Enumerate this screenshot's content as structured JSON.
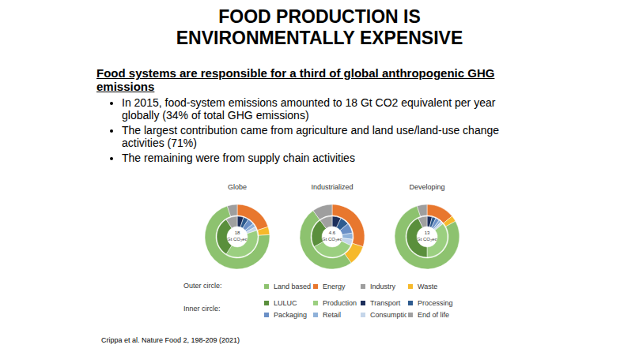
{
  "slide": {
    "title": [
      "FOOD PRODUCTION IS",
      "ENVIRONMENTALLY EXPENSIVE"
    ],
    "heading": "Food systems are responsible for a third of global anthropogenic GHG emissions",
    "bullets": [
      "In 2015, food-system emissions amounted to 18 Gt CO2 equivalent per year globally (34% of total GHG emissions)",
      "The largest contribution came from agriculture and land use/land-use change activities (71%)",
      "The remaining were from supply chain activities"
    ],
    "key": [
      {
        "label": "Outer circle:",
        "items": [
          "Land based",
          "Energy",
          "Industry",
          "Waste"
        ]
      },
      {
        "label": "Inner circle:",
        "items": [
          "LULUC",
          "Production",
          "Transport",
          "Processing",
          "Packaging",
          "Retail",
          "Consumption",
          "End of life"
        ]
      }
    ],
    "citation": "Crippa et al. Nature Food 2, 198-209 (2021)"
  },
  "chart_data": [
    {
      "type": "pie",
      "title": "Globe",
      "total": 18,
      "total_unit": "Gt CO₂eq",
      "series": [
        {
          "categories": [
            "Energy",
            "Waste",
            "Land based",
            "Industry"
          ],
          "values": [
            20,
            4,
            71,
            5
          ],
          "colors": [
            "#e8772e",
            "#f6b92b",
            "#8dc26f",
            "#9e9e9e"
          ]
        },
        {
          "categories": [
            "Transport",
            "Processing",
            "Packaging",
            "Retail",
            "Consumption",
            "Production",
            "LULUC",
            "End of life"
          ],
          "values": [
            5,
            4,
            5,
            3,
            3,
            39,
            32,
            9
          ],
          "colors": [
            "#1d2f5b",
            "#2e5b8f",
            "#6a8fc6",
            "#8fb1d9",
            "#c5d6ea",
            "#9bcf80",
            "#5a8f3c",
            "#a0a0a0"
          ]
        }
      ]
    },
    {
      "type": "pie",
      "title": "Industrialized",
      "total": 4.6,
      "total_unit": "Gt CO₂eq",
      "series": [
        {
          "categories": [
            "Energy",
            "Waste",
            "Land based",
            "Industry"
          ],
          "values": [
            30,
            10,
            50,
            10
          ],
          "colors": [
            "#e8772e",
            "#f6b92b",
            "#8dc26f",
            "#9e9e9e"
          ]
        },
        {
          "categories": [
            "Transport",
            "Processing",
            "Packaging",
            "Retail",
            "Consumption",
            "Production",
            "LULUC",
            "End of life"
          ],
          "values": [
            7,
            7,
            8,
            5,
            5,
            35,
            23,
            10
          ],
          "colors": [
            "#1d2f5b",
            "#2e5b8f",
            "#6a8fc6",
            "#8fb1d9",
            "#c5d6ea",
            "#9bcf80",
            "#5a8f3c",
            "#a0a0a0"
          ]
        }
      ]
    },
    {
      "type": "pie",
      "title": "Developing",
      "total": 13,
      "total_unit": "Gt CO₂eq",
      "series": [
        {
          "categories": [
            "Energy",
            "Waste",
            "Land based",
            "Industry"
          ],
          "values": [
            14,
            3,
            78,
            5
          ],
          "colors": [
            "#e8772e",
            "#f6b92b",
            "#8dc26f",
            "#9e9e9e"
          ]
        },
        {
          "categories": [
            "Transport",
            "Processing",
            "Packaging",
            "Retail",
            "Consumption",
            "Production",
            "LULUC",
            "End of life"
          ],
          "values": [
            4,
            3,
            3,
            2,
            2,
            36,
            43,
            7
          ],
          "colors": [
            "#1d2f5b",
            "#2e5b8f",
            "#6a8fc6",
            "#8fb1d9",
            "#c5d6ea",
            "#9bcf80",
            "#5a8f3c",
            "#a0a0a0"
          ]
        }
      ]
    }
  ]
}
